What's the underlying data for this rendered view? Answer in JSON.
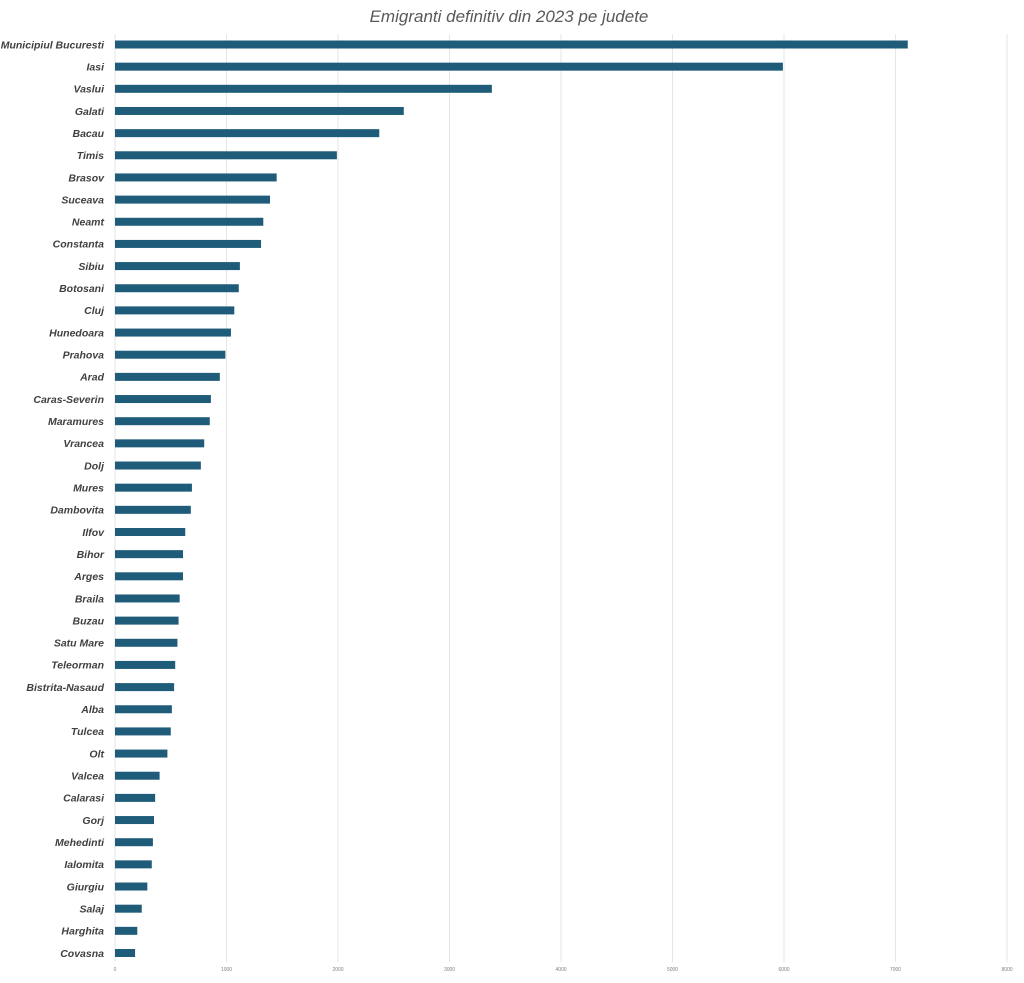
{
  "chart_data": {
    "type": "bar",
    "orientation": "horizontal",
    "title": "Emigranti definitiv din 2023 pe judete",
    "xlabel": "",
    "ylabel": "",
    "xlim": [
      0,
      8000
    ],
    "x_ticks": [
      0,
      1000,
      2000,
      3000,
      4000,
      5000,
      6000,
      7000,
      8000
    ],
    "grid": true,
    "legend": "none",
    "bar_color": "#1f5c7a",
    "categories": [
      "Municipiul Bucuresti",
      "Iasi",
      "Vaslui",
      "Galati",
      "Bacau",
      "Timis",
      "Brasov",
      "Suceava",
      "Neamt",
      "Constanta",
      "Sibiu",
      "Botosani",
      "Cluj",
      "Hunedoara",
      "Prahova",
      "Arad",
      "Caras-Severin",
      "Maramures",
      "Vrancea",
      "Dolj",
      "Mures",
      "Dambovita",
      "Ilfov",
      "Bihor",
      "Arges",
      "Braila",
      "Buzau",
      "Satu Mare",
      "Teleorman",
      "Bistrita-Nasaud",
      "Alba",
      "Tulcea",
      "Olt",
      "Valcea",
      "Calarasi",
      "Gorj",
      "Mehedinti",
      "Ialomita",
      "Giurgiu",
      "Salaj",
      "Harghita",
      "Covasna"
    ],
    "values": [
      7110,
      5990,
      3380,
      2590,
      2370,
      1990,
      1450,
      1390,
      1330,
      1310,
      1120,
      1110,
      1070,
      1040,
      990,
      940,
      860,
      850,
      800,
      770,
      690,
      680,
      630,
      610,
      610,
      580,
      570,
      560,
      540,
      530,
      510,
      500,
      470,
      400,
      360,
      350,
      340,
      330,
      290,
      240,
      200,
      180
    ]
  }
}
